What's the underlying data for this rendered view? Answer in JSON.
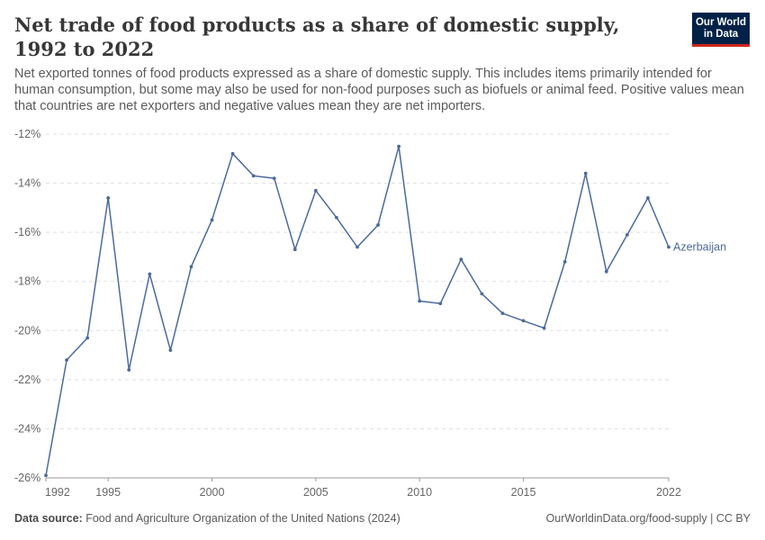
{
  "header": {
    "title": "Net trade of food products as a share of domestic supply, 1992 to 2022",
    "subtitle": "Net exported tonnes of food products expressed as a share of domestic supply. This includes items primarily intended for human consumption, but some may also be used for non-food purposes such as biofuels or animal feed. Positive values mean that countries are net exporters and negative values mean they are net importers.",
    "logo_line1": "Our World",
    "logo_line2": "in Data"
  },
  "footer": {
    "source_label": "Data source:",
    "source_text": "Food and Agriculture Organization of the United Nations (2024)",
    "right_text": "OurWorldinData.org/food-supply | CC BY"
  },
  "colors": {
    "series": "#4c6a9c",
    "grid": "#dddddd",
    "axis_text": "#666666",
    "logo_bg": "#002147",
    "logo_accent": "#ce261e"
  },
  "chart_data": {
    "type": "line",
    "title": "Net trade of food products as a share of domestic supply, 1992 to 2022",
    "xlabel": "",
    "ylabel": "",
    "xlim": [
      1992,
      2022
    ],
    "ylim": [
      -26,
      -12
    ],
    "y_ticks": [
      -12,
      -14,
      -16,
      -18,
      -20,
      -22,
      -24,
      -26
    ],
    "y_tick_labels": [
      "-12%",
      "-14%",
      "-16%",
      "-18%",
      "-20%",
      "-22%",
      "-24%",
      "-26%"
    ],
    "x_ticks": [
      1992,
      1995,
      2000,
      2005,
      2010,
      2015,
      2022
    ],
    "x_tick_labels": [
      "1992",
      "1995",
      "2000",
      "2005",
      "2010",
      "2015",
      "2022"
    ],
    "grid": "horizontal dashed",
    "series": [
      {
        "name": "Azerbaijan",
        "x": [
          1992,
          1993,
          1994,
          1995,
          1996,
          1997,
          1998,
          1999,
          2000,
          2001,
          2002,
          2003,
          2004,
          2005,
          2006,
          2007,
          2008,
          2009,
          2010,
          2011,
          2012,
          2013,
          2014,
          2015,
          2016,
          2017,
          2018,
          2019,
          2020,
          2021,
          2022
        ],
        "values": [
          -25.9,
          -21.2,
          -20.3,
          -14.6,
          -21.6,
          -17.7,
          -20.8,
          -17.4,
          -15.5,
          -12.8,
          -13.7,
          -13.8,
          -16.7,
          -14.3,
          -15.4,
          -16.6,
          -15.7,
          -12.5,
          -18.8,
          -18.9,
          -17.1,
          -18.5,
          -19.3,
          -19.6,
          -19.9,
          -17.2,
          -13.6,
          -17.6,
          -16.1,
          -14.6,
          -16.6
        ]
      }
    ]
  }
}
